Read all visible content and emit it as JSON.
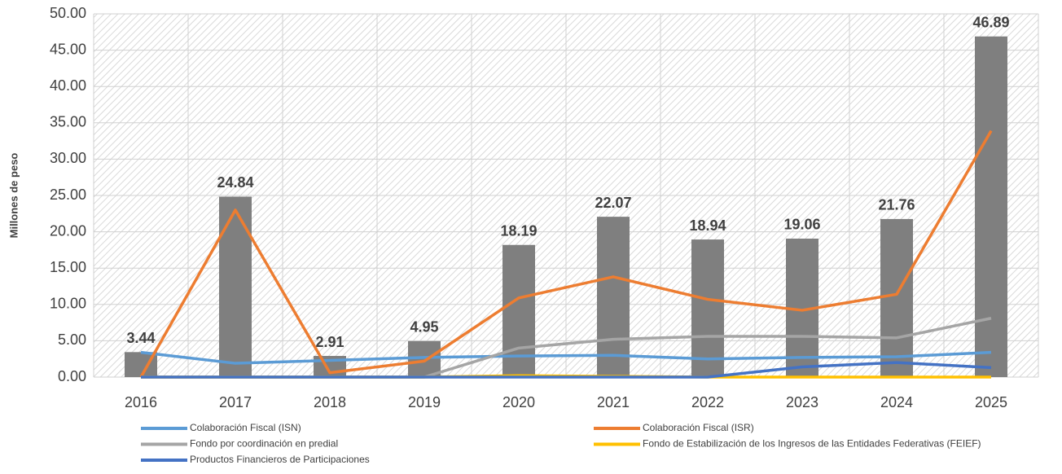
{
  "chart_data": {
    "type": "bar",
    "y_axis_label": "Millones de peso",
    "categories": [
      "2016",
      "2017",
      "2018",
      "2019",
      "2020",
      "2021",
      "2022",
      "2023",
      "2024",
      "2025"
    ],
    "ylim": [
      0,
      50
    ],
    "yticks": [
      {
        "value": 0,
        "label": "0.00"
      },
      {
        "value": 5,
        "label": "5.00"
      },
      {
        "value": 10,
        "label": "10.00"
      },
      {
        "value": 15,
        "label": "15.00"
      },
      {
        "value": 20,
        "label": "20.00"
      },
      {
        "value": 25,
        "label": "25.00"
      },
      {
        "value": 30,
        "label": "30.00"
      },
      {
        "value": 35,
        "label": "35.00"
      },
      {
        "value": 40,
        "label": "40.00"
      },
      {
        "value": 45,
        "label": "45.00"
      },
      {
        "value": 50,
        "label": "50.00"
      }
    ],
    "grid": true,
    "series": [
      {
        "type": "bar",
        "color": "#7f7f7f",
        "values": [
          3.44,
          24.84,
          2.91,
          4.95,
          18.19,
          22.07,
          18.94,
          19.06,
          21.76,
          46.89
        ]
      },
      {
        "type": "line",
        "name": "Colaboración Fiscal (ISN)",
        "color": "#5b9bd5",
        "values": [
          3.4,
          1.9,
          2.3,
          2.7,
          2.9,
          3.0,
          2.5,
          2.7,
          2.8,
          3.4
        ]
      },
      {
        "type": "line",
        "name": "Colaboración Fiscal (ISR)",
        "color": "#ed7d31",
        "values": [
          0,
          23.0,
          0.6,
          2.2,
          10.9,
          13.8,
          10.7,
          9.2,
          11.4,
          33.9
        ]
      },
      {
        "type": "line",
        "name": "Fondo por coordinación en predial",
        "color": "#a5a5a5",
        "values": [
          0,
          0,
          0,
          0,
          4.0,
          5.2,
          5.6,
          5.6,
          5.4,
          8.1
        ]
      },
      {
        "type": "line",
        "name": "Fondo de Estabilización de los Ingresos de las Entidades Federativas (FEIEF)",
        "color": "#ffc000",
        "values": [
          0,
          0,
          0,
          0,
          0.2,
          0.1,
          0,
          0,
          0,
          0
        ]
      },
      {
        "type": "line",
        "name": "Productos Financieros de Participaciones",
        "color": "#4472c4",
        "values": [
          0,
          0,
          0,
          0,
          0,
          0,
          0,
          1.4,
          2.0,
          1.3
        ]
      }
    ]
  }
}
